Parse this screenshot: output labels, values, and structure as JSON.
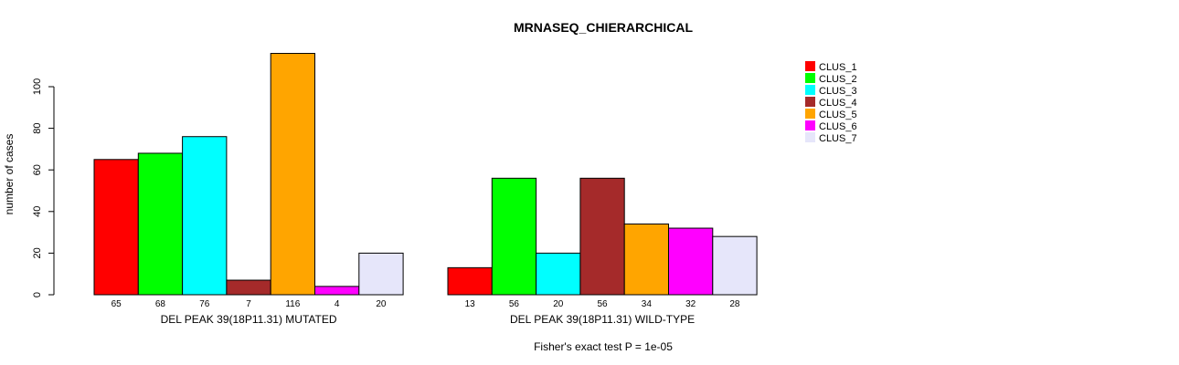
{
  "chart_data": {
    "type": "bar",
    "title": "MRNASEQ_CHIERARCHICAL",
    "ylabel": "number of cases",
    "ylim": [
      0,
      116
    ],
    "yticks": [
      0,
      20,
      40,
      60,
      80,
      100
    ],
    "footnote": "Fisher's exact test P = 1e-05",
    "legend_position": "top-right",
    "series_names": [
      "CLUS_1",
      "CLUS_2",
      "CLUS_3",
      "CLUS_4",
      "CLUS_5",
      "CLUS_6",
      "CLUS_7"
    ],
    "colors": [
      "#FF0000",
      "#00FF00",
      "#00FFFF",
      "#A52A2A",
      "#FFA500",
      "#FF00FF",
      "#E6E6FA"
    ],
    "groups": [
      {
        "label": "DEL PEAK 39(18P11.31) MUTATED",
        "values": [
          65,
          68,
          76,
          7,
          116,
          4,
          20
        ]
      },
      {
        "label": "DEL PEAK 39(18P11.31) WILD-TYPE",
        "values": [
          13,
          56,
          20,
          56,
          34,
          32,
          28
        ]
      }
    ]
  }
}
